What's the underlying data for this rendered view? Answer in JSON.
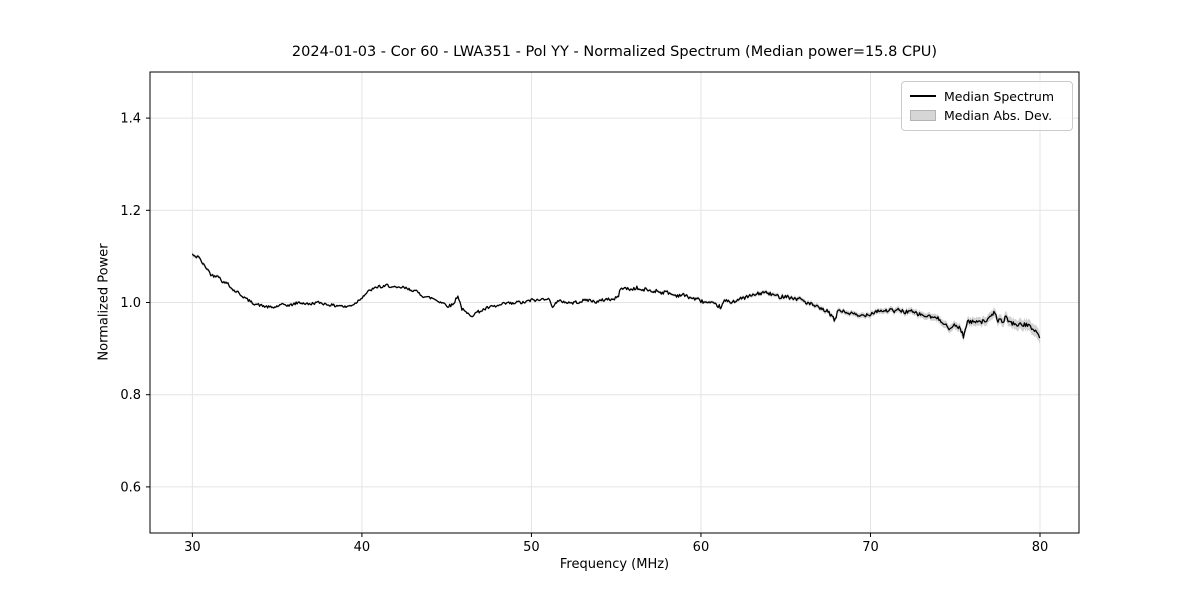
{
  "figure": {
    "title": "2024-01-03 - Cor 60 - LWA351 - Pol YY - Normalized Spectrum (Median power=15.8 CPU)"
  },
  "chart_data": {
    "type": "line",
    "title": "2024-01-03 - Cor 60 - LWA351 - Pol YY - Normalized Spectrum (Median power=15.8 CPU)",
    "xlabel": "Frequency (MHz)",
    "ylabel": "Normalized Power",
    "xlim": [
      27.5,
      82.3
    ],
    "ylim": [
      0.5,
      1.5
    ],
    "xticks": [
      30,
      40,
      50,
      60,
      70,
      80
    ],
    "yticks": [
      0.6,
      0.8,
      1.0,
      1.2,
      1.4
    ],
    "ytick_labels": [
      "0.6",
      "0.8",
      "1.0",
      "1.2",
      "1.4"
    ],
    "grid": true,
    "grid_color": "#e4e4e4",
    "spine_color": "#000000",
    "legend": {
      "position": "upper right",
      "entries": [
        {
          "label": "Median Spectrum",
          "type": "line",
          "color": "#000000"
        },
        {
          "label": "Median Abs. Dev.",
          "type": "patch",
          "color": "#d6d6d6"
        }
      ]
    },
    "series": [
      {
        "name": "Median Spectrum",
        "color": "#000000",
        "x": [
          30.0,
          30.1,
          30.2,
          30.35,
          30.5,
          30.7,
          30.9,
          31.1,
          31.3,
          31.5,
          31.7,
          31.9,
          32.1,
          32.3,
          32.5,
          32.7,
          32.9,
          33.1,
          33.3,
          33.5,
          33.7,
          33.9,
          34.2,
          34.5,
          34.8,
          35.1,
          35.4,
          35.7,
          36.0,
          36.3,
          36.6,
          36.9,
          37.2,
          37.5,
          37.8,
          38.1,
          38.4,
          38.7,
          39.0,
          39.3,
          39.6,
          39.9,
          40.2,
          40.5,
          40.8,
          41.0,
          41.2,
          41.5,
          41.8,
          42.1,
          42.4,
          42.7,
          43.0,
          43.3,
          43.6,
          43.9,
          44.2,
          44.5,
          44.8,
          45.1,
          45.4,
          45.65,
          45.9,
          46.2,
          46.5,
          46.8,
          47.1,
          47.4,
          47.7,
          48.0,
          48.3,
          48.6,
          48.9,
          49.2,
          49.5,
          49.8,
          50.1,
          50.4,
          50.7,
          51.0,
          51.2,
          51.5,
          51.8,
          52.1,
          52.4,
          52.7,
          53.0,
          53.3,
          53.6,
          53.9,
          54.2,
          54.5,
          54.8,
          55.1,
          55.3,
          55.6,
          55.9,
          56.2,
          56.5,
          56.8,
          57.1,
          57.4,
          57.7,
          58.0,
          58.3,
          58.6,
          58.9,
          59.2,
          59.5,
          59.8,
          60.1,
          60.4,
          60.7,
          61.0,
          61.2,
          61.4,
          61.7,
          62.0,
          62.3,
          62.6,
          62.9,
          63.2,
          63.5,
          63.8,
          64.1,
          64.4,
          64.7,
          65.0,
          65.3,
          65.6,
          65.9,
          66.2,
          66.5,
          66.8,
          67.1,
          67.4,
          67.7,
          67.9,
          68.1,
          68.4,
          68.7,
          69.0,
          69.3,
          69.6,
          69.9,
          70.2,
          70.5,
          70.8,
          71.1,
          71.4,
          71.7,
          72.0,
          72.3,
          72.6,
          72.9,
          73.2,
          73.5,
          73.8,
          74.1,
          74.4,
          74.7,
          74.9,
          75.1,
          75.3,
          75.5,
          75.7,
          76.0,
          76.3,
          76.6,
          76.9,
          77.1,
          77.3,
          77.5,
          77.8,
          78.0,
          78.2,
          78.5,
          78.8,
          79.1,
          79.4,
          79.7,
          79.9,
          80.0
        ],
        "y": [
          1.105,
          1.1,
          1.098,
          1.102,
          1.09,
          1.08,
          1.072,
          1.06,
          1.057,
          1.06,
          1.048,
          1.042,
          1.043,
          1.03,
          1.025,
          1.022,
          1.015,
          1.01,
          1.005,
          1.0,
          0.997,
          0.995,
          0.992,
          0.99,
          0.989,
          0.993,
          0.996,
          0.993,
          0.997,
          1.0,
          0.998,
          0.996,
          0.999,
          1.0,
          0.997,
          0.995,
          0.993,
          0.994,
          0.99,
          0.993,
          0.998,
          1.008,
          1.018,
          1.027,
          1.031,
          1.036,
          1.032,
          1.038,
          1.033,
          1.031,
          1.033,
          1.029,
          1.027,
          1.022,
          1.014,
          1.011,
          1.009,
          1.003,
          0.999,
          0.992,
          0.996,
          1.016,
          0.986,
          0.976,
          0.972,
          0.979,
          0.983,
          0.988,
          0.991,
          0.992,
          0.996,
          0.999,
          0.997,
          1.001,
          0.999,
          1.003,
          1.006,
          1.004,
          1.008,
          1.01,
          0.991,
          1.001,
          1.003,
          1.0,
          0.999,
          1.001,
          1.003,
          1.006,
          1.003,
          1.001,
          1.005,
          1.008,
          1.006,
          1.012,
          1.033,
          1.03,
          1.028,
          1.032,
          1.026,
          1.029,
          1.023,
          1.026,
          1.021,
          1.023,
          1.017,
          1.015,
          1.017,
          1.013,
          1.009,
          1.007,
          1.002,
          0.999,
          0.997,
          0.993,
          0.989,
          1.005,
          1.0,
          1.004,
          1.007,
          1.011,
          1.014,
          1.017,
          1.02,
          1.022,
          1.018,
          1.015,
          1.012,
          1.015,
          1.01,
          1.008,
          1.008,
          1.0,
          0.996,
          0.991,
          0.985,
          0.982,
          0.972,
          0.959,
          0.985,
          0.98,
          0.977,
          0.975,
          0.97,
          0.973,
          0.974,
          0.979,
          0.983,
          0.981,
          0.984,
          0.981,
          0.984,
          0.979,
          0.982,
          0.977,
          0.974,
          0.971,
          0.969,
          0.967,
          0.963,
          0.954,
          0.939,
          0.952,
          0.949,
          0.944,
          0.925,
          0.959,
          0.957,
          0.962,
          0.958,
          0.963,
          0.967,
          0.98,
          0.962,
          0.959,
          0.969,
          0.957,
          0.954,
          0.951,
          0.953,
          0.947,
          0.941,
          0.93,
          0.92
        ]
      },
      {
        "name": "Median Abs. Dev.",
        "color": "#a6a6a6",
        "x": [
          30,
          32,
          35,
          40,
          45,
          50,
          55,
          58,
          61,
          63,
          65,
          67,
          69,
          71,
          73,
          75,
          77,
          78.5,
          80
        ],
        "halfwidth": [
          0.004,
          0.003,
          0.002,
          0.002,
          0.002,
          0.002,
          0.0025,
          0.003,
          0.0035,
          0.004,
          0.0045,
          0.005,
          0.0055,
          0.006,
          0.007,
          0.0085,
          0.0095,
          0.011,
          0.013
        ]
      }
    ],
    "noise": {
      "seed": 42,
      "base_amplitude": 0.0028,
      "extra_amplitude_at_80": 0.0018,
      "sample_step_mhz": 0.06
    }
  }
}
